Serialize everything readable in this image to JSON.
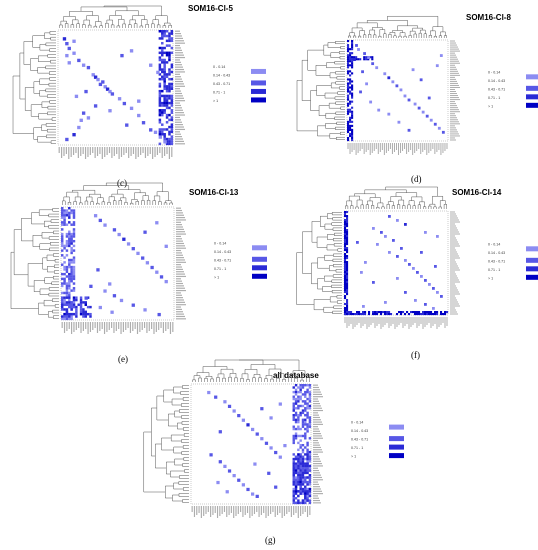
{
  "legend": {
    "entries": [
      "0 - 0.14",
      "0.14 - 0.43",
      "0.43 - 0.71",
      "0.71 - 1",
      "> 1"
    ],
    "colors": [
      "#ffffff",
      "#8c8cf2",
      "#5757e6",
      "#2a2ad6",
      "#0000c4"
    ]
  },
  "chart_data": [
    {
      "type": "heatmap",
      "title": "SOM16-Cl-5",
      "caption": "(c)",
      "n": 48,
      "cells": [
        [
          3,
          2,
          3
        ],
        [
          5,
          3,
          2
        ],
        [
          4,
          6,
          1
        ],
        [
          7,
          4,
          2
        ],
        [
          9,
          6,
          1
        ],
        [
          10,
          3,
          1
        ],
        [
          12,
          8,
          2
        ],
        [
          13,
          4,
          1
        ],
        [
          14,
          10,
          1
        ],
        [
          15,
          12,
          2
        ],
        [
          18,
          14,
          1
        ],
        [
          19,
          15,
          3
        ],
        [
          20,
          16,
          1
        ],
        [
          21,
          18,
          2
        ],
        [
          22,
          17,
          2
        ],
        [
          23,
          19,
          1
        ],
        [
          24,
          20,
          3
        ],
        [
          25,
          21,
          1
        ],
        [
          26,
          22,
          2
        ],
        [
          28,
          25,
          1
        ],
        [
          30,
          27,
          2
        ],
        [
          32,
          30,
          1
        ],
        [
          34,
          10,
          2
        ],
        [
          35,
          33,
          1
        ],
        [
          36,
          12,
          1
        ],
        [
          38,
          35,
          2
        ],
        [
          40,
          8,
          1
        ],
        [
          41,
          38,
          2
        ],
        [
          42,
          40,
          1
        ],
        [
          43,
          6,
          3
        ],
        [
          44,
          42,
          1
        ],
        [
          45,
          3,
          2
        ],
        [
          46,
          44,
          1
        ],
        [
          8,
          30,
          1
        ],
        [
          10,
          26,
          2
        ],
        [
          14,
          38,
          1
        ],
        [
          17,
          41,
          1
        ],
        [
          25,
          11,
          2
        ],
        [
          27,
          7,
          1
        ],
        [
          29,
          33,
          1
        ],
        [
          31,
          15,
          2
        ],
        [
          33,
          21,
          1
        ],
        [
          37,
          9,
          1
        ],
        [
          39,
          28,
          2
        ]
      ],
      "bands": [
        {
          "cols": [
            42,
            47
          ],
          "rows": [
            0,
            47
          ],
          "density": 0.55,
          "level": 3
        }
      ]
    },
    {
      "type": "heatmap",
      "title": "SOM16-Cl-8",
      "caption": "(d)",
      "n": 50,
      "cells": [
        [
          2,
          4,
          2
        ],
        [
          4,
          5,
          1
        ],
        [
          6,
          8,
          2
        ],
        [
          8,
          10,
          1
        ],
        [
          9,
          3,
          3
        ],
        [
          11,
          12,
          2
        ],
        [
          13,
          14,
          1
        ],
        [
          15,
          7,
          2
        ],
        [
          16,
          18,
          1
        ],
        [
          18,
          20,
          3
        ],
        [
          20,
          22,
          1
        ],
        [
          22,
          24,
          2
        ],
        [
          24,
          26,
          1
        ],
        [
          25,
          6,
          2
        ],
        [
          27,
          28,
          1
        ],
        [
          29,
          30,
          2
        ],
        [
          31,
          33,
          1
        ],
        [
          33,
          35,
          2
        ],
        [
          35,
          37,
          1
        ],
        [
          37,
          39,
          2
        ],
        [
          39,
          41,
          1
        ],
        [
          41,
          43,
          2
        ],
        [
          43,
          45,
          1
        ],
        [
          45,
          47,
          2
        ],
        [
          14,
          32,
          1
        ],
        [
          21,
          9,
          1
        ],
        [
          28,
          40,
          2
        ],
        [
          34,
          15,
          1
        ],
        [
          40,
          25,
          1
        ],
        [
          12,
          44,
          1
        ],
        [
          19,
          36,
          2
        ],
        [
          30,
          11,
          1
        ],
        [
          36,
          20,
          1
        ],
        [
          44,
          30,
          2
        ],
        [
          7,
          46,
          1
        ]
      ],
      "bands": [
        {
          "cols": [
            0,
            2
          ],
          "rows": [
            0,
            49
          ],
          "density": 0.7,
          "level": 4
        },
        {
          "cols": [
            0,
            12
          ],
          "rows": [
            8,
            9
          ],
          "density": 0.85,
          "level": 4
        }
      ]
    },
    {
      "type": "heatmap",
      "title": "SOM16-Cl-13",
      "caption": "(e)",
      "n": 48,
      "cells": [
        [
          3,
          14,
          1
        ],
        [
          5,
          16,
          2
        ],
        [
          7,
          18,
          1
        ],
        [
          9,
          22,
          2
        ],
        [
          11,
          24,
          1
        ],
        [
          13,
          26,
          3
        ],
        [
          15,
          28,
          1
        ],
        [
          17,
          30,
          2
        ],
        [
          19,
          32,
          1
        ],
        [
          21,
          34,
          2
        ],
        [
          23,
          36,
          1
        ],
        [
          25,
          38,
          2
        ],
        [
          27,
          40,
          1
        ],
        [
          29,
          42,
          2
        ],
        [
          31,
          44,
          1
        ],
        [
          33,
          12,
          2
        ],
        [
          35,
          18,
          1
        ],
        [
          37,
          22,
          2
        ],
        [
          39,
          25,
          1
        ],
        [
          41,
          30,
          2
        ],
        [
          43,
          35,
          1
        ],
        [
          45,
          41,
          2
        ],
        [
          6,
          40,
          1
        ],
        [
          10,
          35,
          2
        ],
        [
          16,
          44,
          1
        ],
        [
          26,
          15,
          2
        ],
        [
          32,
          20,
          1
        ],
        [
          38,
          10,
          2
        ],
        [
          42,
          16,
          1
        ],
        [
          44,
          21,
          1
        ]
      ],
      "bands": [
        {
          "cols": [
            0,
            5
          ],
          "rows": [
            0,
            47
          ],
          "density": 0.55,
          "level": 2
        },
        {
          "cols": [
            0,
            12
          ],
          "rows": [
            38,
            46
          ],
          "density": 0.5,
          "level": 3
        }
      ]
    },
    {
      "type": "heatmap",
      "title": "SOM16-Cl-14",
      "caption": "(f)",
      "n": 52,
      "cells": [
        [
          2,
          22,
          2
        ],
        [
          4,
          26,
          1
        ],
        [
          6,
          30,
          3
        ],
        [
          8,
          14,
          1
        ],
        [
          10,
          18,
          2
        ],
        [
          12,
          20,
          1
        ],
        [
          14,
          24,
          2
        ],
        [
          16,
          16,
          1
        ],
        [
          18,
          28,
          2
        ],
        [
          20,
          22,
          1
        ],
        [
          22,
          26,
          2
        ],
        [
          24,
          30,
          1
        ],
        [
          26,
          32,
          2
        ],
        [
          28,
          34,
          1
        ],
        [
          30,
          36,
          2
        ],
        [
          32,
          38,
          1
        ],
        [
          34,
          40,
          2
        ],
        [
          36,
          42,
          1
        ],
        [
          38,
          44,
          2
        ],
        [
          40,
          46,
          1
        ],
        [
          42,
          48,
          2
        ],
        [
          44,
          35,
          1
        ],
        [
          46,
          40,
          2
        ],
        [
          48,
          44,
          1
        ],
        [
          10,
          40,
          1
        ],
        [
          15,
          6,
          2
        ],
        [
          25,
          10,
          1
        ],
        [
          35,
          14,
          2
        ],
        [
          45,
          20,
          1
        ],
        [
          20,
          38,
          2
        ],
        [
          30,
          8,
          1
        ],
        [
          40,
          30,
          2
        ],
        [
          12,
          46,
          1
        ],
        [
          27,
          45,
          2
        ],
        [
          33,
          26,
          1
        ],
        [
          47,
          9,
          1
        ]
      ],
      "bands": [
        {
          "cols": [
            0,
            1
          ],
          "rows": [
            0,
            51
          ],
          "density": 0.85,
          "level": 4
        },
        {
          "cols": [
            0,
            51
          ],
          "rows": [
            50,
            51
          ],
          "density": 0.75,
          "level": 4
        }
      ]
    },
    {
      "type": "heatmap",
      "title": "all database",
      "caption": "(g)",
      "n": 52,
      "cells": [
        [
          3,
          7,
          1
        ],
        [
          5,
          10,
          2
        ],
        [
          7,
          14,
          1
        ],
        [
          9,
          16,
          2
        ],
        [
          11,
          18,
          1
        ],
        [
          13,
          20,
          2
        ],
        [
          15,
          22,
          1
        ],
        [
          17,
          24,
          3
        ],
        [
          19,
          26,
          1
        ],
        [
          21,
          28,
          2
        ],
        [
          23,
          30,
          1
        ],
        [
          25,
          32,
          2
        ],
        [
          27,
          34,
          1
        ],
        [
          29,
          36,
          2
        ],
        [
          31,
          38,
          1
        ],
        [
          33,
          12,
          2
        ],
        [
          35,
          14,
          1
        ],
        [
          37,
          16,
          2
        ],
        [
          39,
          18,
          1
        ],
        [
          41,
          20,
          2
        ],
        [
          43,
          22,
          1
        ],
        [
          45,
          24,
          2
        ],
        [
          47,
          26,
          1
        ],
        [
          10,
          30,
          2
        ],
        [
          14,
          34,
          1
        ],
        [
          20,
          12,
          2
        ],
        [
          26,
          40,
          1
        ],
        [
          30,
          8,
          2
        ],
        [
          34,
          27,
          1
        ],
        [
          38,
          33,
          2
        ],
        [
          42,
          11,
          1
        ],
        [
          44,
          36,
          2
        ],
        [
          46,
          15,
          1
        ],
        [
          48,
          28,
          2
        ],
        [
          8,
          38,
          1
        ]
      ],
      "bands": [
        {
          "cols": [
            44,
            51
          ],
          "rows": [
            0,
            51
          ],
          "density": 0.5,
          "level": 2
        },
        {
          "cols": [
            44,
            51
          ],
          "rows": [
            30,
            51
          ],
          "density": 0.55,
          "level": 3
        }
      ]
    }
  ]
}
